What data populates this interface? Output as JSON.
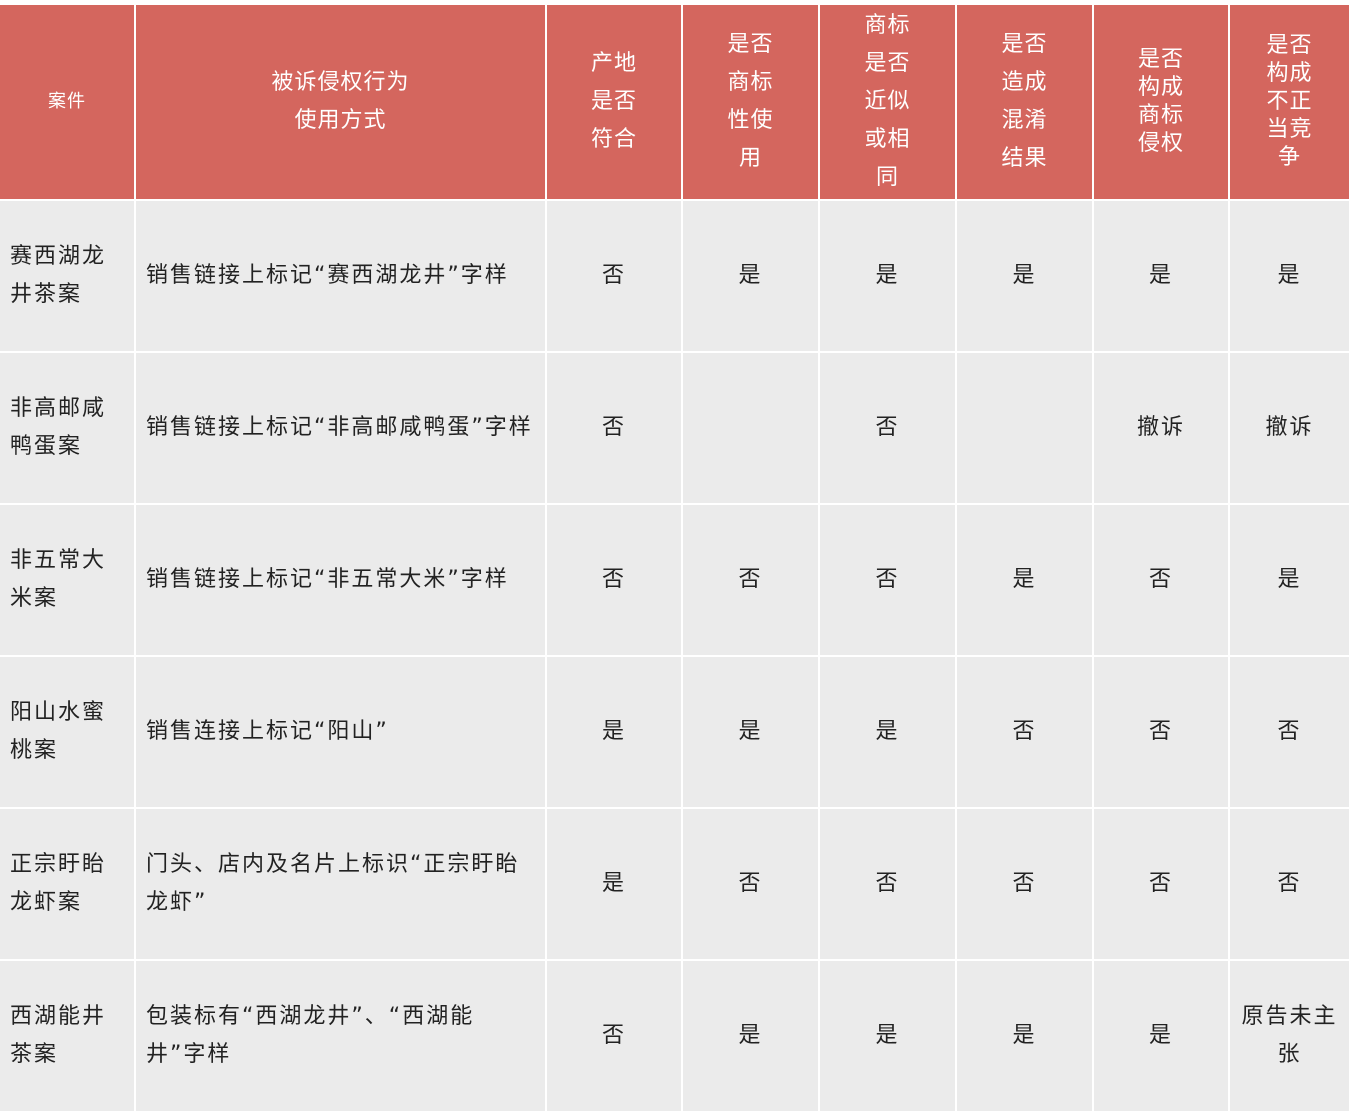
{
  "colors": {
    "header_bg": "#d4665e",
    "body_bg": "#ebebeb"
  },
  "headers": [
    "案件",
    "被诉侵权行为\n使用方式",
    "产地\n是否\n符合",
    "是否\n商标\n性使\n用",
    "商标\n是否\n近似\n或相\n同",
    "是否\n造成\n混淆\n结果",
    "是否\n构成\n商标\n侵权",
    "是否\n构成\n不正\n当竞\n争"
  ],
  "rows": [
    [
      "赛西湖龙井茶案",
      "销售链接上标记“赛西湖龙井”字样",
      "否",
      "是",
      "是",
      "是",
      "是",
      "是"
    ],
    [
      "非高邮咸鸭蛋案",
      "销售链接上标记“非高邮咸鸭蛋”字样",
      "否",
      "",
      "否",
      "",
      "撤诉",
      "撤诉"
    ],
    [
      "非五常大米案",
      "销售链接上标记“非五常大米”字样",
      "否",
      "否",
      "否",
      "是",
      "否",
      "是"
    ],
    [
      "阳山水蜜桃案",
      "销售连接上标记“阳山”",
      "是",
      "是",
      "是",
      "否",
      "否",
      "否"
    ],
    [
      "正宗盱眙龙虾案",
      "门头、店内及名片上标识“正宗盱眙龙虾”",
      "是",
      "否",
      "否",
      "否",
      "否",
      "否"
    ],
    [
      "西湖能井茶案",
      "包装标有“西湖龙井”、“西湖能井”字样",
      "否",
      "是",
      "是",
      "是",
      "是",
      "原告未主张"
    ]
  ]
}
